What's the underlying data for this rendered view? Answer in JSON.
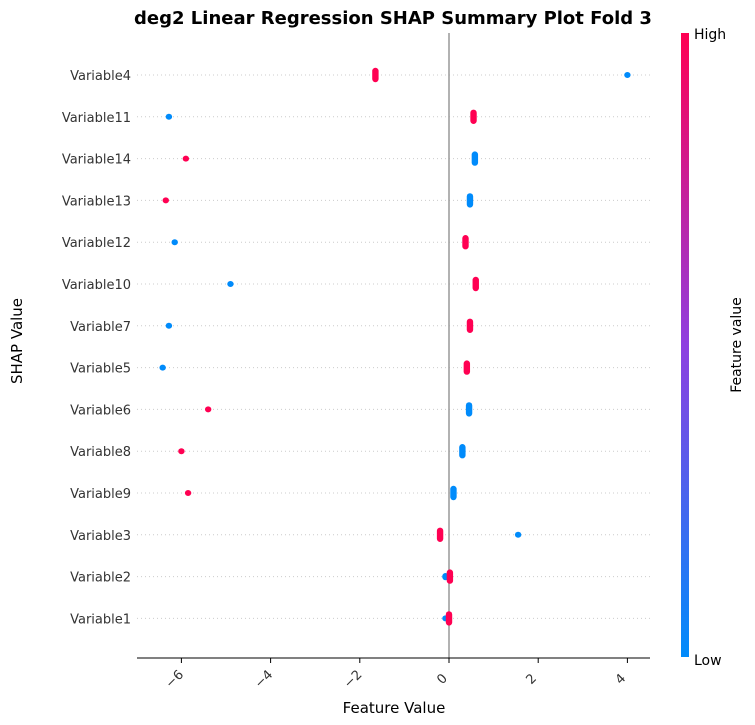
{
  "chart_data": {
    "type": "scatter",
    "title": "deg2 Linear Regression SHAP Summary Plot Fold 3",
    "xlabel": "Feature Value",
    "ylabel": "SHAP Value",
    "xlim": [
      -7,
      4.5
    ],
    "xticks": [
      -6,
      -4,
      -2,
      0,
      2,
      4
    ],
    "xtick_labels": [
      "−6",
      "−4",
      "−2",
      "0",
      "2",
      "4"
    ],
    "colorbar": {
      "label": "Feature value",
      "high_label": "High",
      "low_label": "Low",
      "high_color": "#ff0052",
      "low_color": "#008bfb"
    },
    "features": [
      {
        "name": "Variable4",
        "points": [
          {
            "x": -1.65,
            "spread": 0.4,
            "color": "#ff0052"
          },
          {
            "x": 4.0,
            "spread": 0.15,
            "color": "#008bfb"
          }
        ]
      },
      {
        "name": "Variable11",
        "points": [
          {
            "x": -6.28,
            "spread": 0.05,
            "color": "#008bfb"
          },
          {
            "x": 0.55,
            "spread": 0.4,
            "color": "#ff0052"
          }
        ]
      },
      {
        "name": "Variable14",
        "points": [
          {
            "x": -5.9,
            "spread": 0.05,
            "color": "#ff0052"
          },
          {
            "x": 0.58,
            "spread": 0.4,
            "color": "#008bfb"
          }
        ]
      },
      {
        "name": "Variable13",
        "points": [
          {
            "x": -6.35,
            "spread": 0.05,
            "color": "#ff0052"
          },
          {
            "x": 0.47,
            "spread": 0.4,
            "color": "#008bfb"
          }
        ]
      },
      {
        "name": "Variable12",
        "points": [
          {
            "x": -6.15,
            "spread": 0.05,
            "color": "#008bfb"
          },
          {
            "x": 0.37,
            "spread": 0.4,
            "color": "#ff0052"
          }
        ]
      },
      {
        "name": "Variable10",
        "points": [
          {
            "x": -4.9,
            "spread": 0.05,
            "color": "#008bfb"
          },
          {
            "x": 0.6,
            "spread": 0.4,
            "color": "#ff0052"
          }
        ]
      },
      {
        "name": "Variable7",
        "points": [
          {
            "x": -6.28,
            "spread": 0.05,
            "color": "#008bfb"
          },
          {
            "x": 0.47,
            "spread": 0.4,
            "color": "#ff0052"
          }
        ]
      },
      {
        "name": "Variable5",
        "points": [
          {
            "x": -6.42,
            "spread": 0.05,
            "color": "#008bfb"
          },
          {
            "x": 0.4,
            "spread": 0.4,
            "color": "#ff0052"
          }
        ]
      },
      {
        "name": "Variable6",
        "points": [
          {
            "x": -5.4,
            "spread": 0.05,
            "color": "#ff0052"
          },
          {
            "x": 0.45,
            "spread": 0.4,
            "color": "#008bfb"
          }
        ]
      },
      {
        "name": "Variable8",
        "points": [
          {
            "x": -6.0,
            "spread": 0.05,
            "color": "#ff0052"
          },
          {
            "x": 0.3,
            "spread": 0.4,
            "color": "#008bfb"
          }
        ]
      },
      {
        "name": "Variable9",
        "points": [
          {
            "x": -5.85,
            "spread": 0.05,
            "color": "#ff0052"
          },
          {
            "x": 0.1,
            "spread": 0.4,
            "color": "#008bfb"
          }
        ]
      },
      {
        "name": "Variable3",
        "points": [
          {
            "x": -0.2,
            "spread": 0.4,
            "color": "#ff0052"
          },
          {
            "x": 1.55,
            "spread": 0.12,
            "color": "#008bfb"
          }
        ]
      },
      {
        "name": "Variable2",
        "points": [
          {
            "x": -0.08,
            "spread": 0.2,
            "color": "#008bfb"
          },
          {
            "x": 0.02,
            "spread": 0.4,
            "color": "#ff0052"
          }
        ]
      },
      {
        "name": "Variable1",
        "points": [
          {
            "x": -0.08,
            "spread": 0.05,
            "color": "#008bfb"
          },
          {
            "x": 0.0,
            "spread": 0.4,
            "color": "#ff0052"
          }
        ]
      }
    ],
    "grid": "horizontal-dotted",
    "zero_line": true
  }
}
